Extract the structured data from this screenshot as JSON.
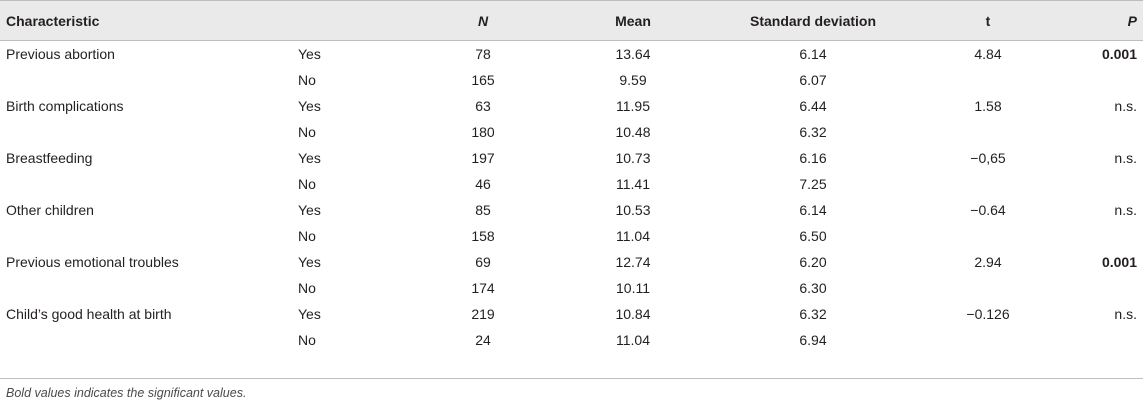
{
  "headers": {
    "characteristic": "Characteristic",
    "n": "N",
    "mean": "Mean",
    "sd": "Standard deviation",
    "t": "t",
    "p": "P"
  },
  "rows": [
    {
      "characteristic": "Previous abortion",
      "group": "Yes",
      "n": "78",
      "mean": "13.64",
      "sd": "6.14",
      "t": "4.84",
      "p": "0.001",
      "p_bold": true
    },
    {
      "characteristic": "",
      "group": "No",
      "n": "165",
      "mean": "9.59",
      "sd": "6.07",
      "t": "",
      "p": "",
      "p_bold": false
    },
    {
      "characteristic": "Birth complications",
      "group": "Yes",
      "n": "63",
      "mean": "11.95",
      "sd": "6.44",
      "t": "1.58",
      "p": "n.s.",
      "p_bold": false
    },
    {
      "characteristic": "",
      "group": "No",
      "n": "180",
      "mean": "10.48",
      "sd": "6.32",
      "t": "",
      "p": "",
      "p_bold": false
    },
    {
      "characteristic": "Breastfeeding",
      "group": "Yes",
      "n": "197",
      "mean": "10.73",
      "sd": "6.16",
      "t": "−0,65",
      "p": "n.s.",
      "p_bold": false
    },
    {
      "characteristic": "",
      "group": "No",
      "n": "46",
      "mean": "11.41",
      "sd": "7.25",
      "t": "",
      "p": "",
      "p_bold": false
    },
    {
      "characteristic": "Other children",
      "group": "Yes",
      "n": "85",
      "mean": "10.53",
      "sd": "6.14",
      "t": "−0.64",
      "p": "n.s.",
      "p_bold": false
    },
    {
      "characteristic": "",
      "group": "No",
      "n": "158",
      "mean": "11.04",
      "sd": "6.50",
      "t": "",
      "p": "",
      "p_bold": false
    },
    {
      "characteristic": "Previous emotional troubles",
      "group": "Yes",
      "n": "69",
      "mean": "12.74",
      "sd": "6.20",
      "t": "2.94",
      "p": "0.001",
      "p_bold": true
    },
    {
      "characteristic": "",
      "group": "No",
      "n": "174",
      "mean": "10.11",
      "sd": "6.30",
      "t": "",
      "p": "",
      "p_bold": false
    },
    {
      "characteristic": "Child’s good health at birth",
      "group": "Yes",
      "n": "219",
      "mean": "10.84",
      "sd": "6.32",
      "t": "−0.126",
      "p": "n.s.",
      "p_bold": false
    },
    {
      "characteristic": "",
      "group": "No",
      "n": "24",
      "mean": "11.04",
      "sd": "6.94",
      "t": "",
      "p": "",
      "p_bold": false
    }
  ],
  "footnote": "Bold values indicates the significant values."
}
